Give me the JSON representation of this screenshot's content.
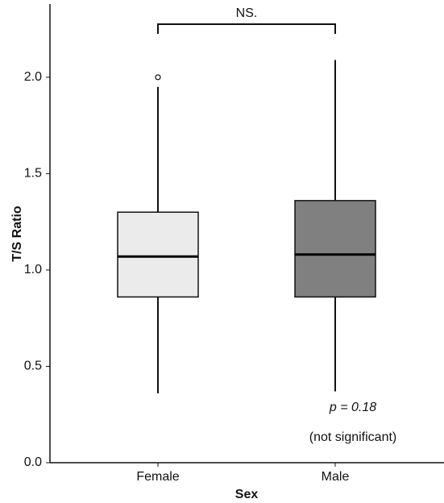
{
  "chart_data": {
    "type": "box",
    "y_label": "T/S Ratio",
    "x_label": "Sex",
    "categories": [
      "Female",
      "Male"
    ],
    "boxes": [
      {
        "min": 0.36,
        "q1": 0.86,
        "median": 1.07,
        "q3": 1.3,
        "max": 1.95,
        "outliers": [
          2.0
        ],
        "color": "#ebebeb"
      },
      {
        "min": 0.37,
        "q1": 0.86,
        "median": 1.08,
        "q3": 1.36,
        "max": 2.09,
        "outliers": [],
        "color": "#808080"
      }
    ],
    "ylim": [
      0,
      2.38
    ],
    "yticks": [
      {
        "value": 0,
        "label": "0.0"
      },
      0.5,
      {
        "value": 1,
        "label": "1.0"
      },
      1.5,
      {
        "value": 2,
        "label": "2.0"
      }
    ],
    "annotations": {
      "bracket": "NS.",
      "p_value": "p = 0.18",
      "significance": "(not significant)"
    }
  }
}
